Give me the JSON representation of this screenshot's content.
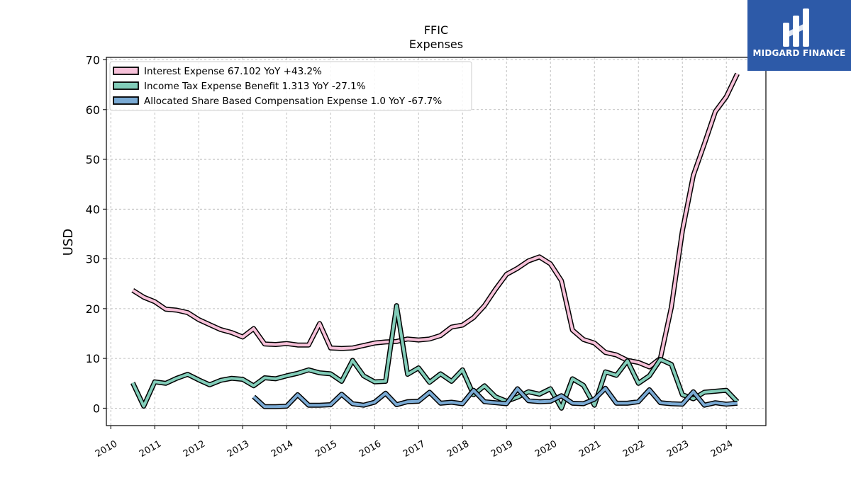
{
  "logo": {
    "text": "MIDGARD FINANCE",
    "icon": "midgard-logo-icon",
    "color": "#2d5aa8"
  },
  "chart_data": {
    "type": "line",
    "title": "FFIC",
    "subtitle": "Expenses",
    "xlabel": "",
    "ylabel": "USD",
    "xlim": [
      2009.9,
      2024.9
    ],
    "ylim": [
      -3.5,
      70.5
    ],
    "yticks": [
      0,
      10,
      20,
      30,
      40,
      50,
      60,
      70
    ],
    "xticks": [
      "2010",
      "2011",
      "2012",
      "2013",
      "2014",
      "2015",
      "2016",
      "2017",
      "2018",
      "2019",
      "2020",
      "2021",
      "2022",
      "2023",
      "2024"
    ],
    "grid": true,
    "legend_position": "top-left",
    "series": [
      {
        "name": "Interest Expense  67.102 YoY +43.2%",
        "color": "#f7c1d9",
        "x": [
          2010.5,
          2010.75,
          2011.0,
          2011.25,
          2011.5,
          2011.75,
          2012.0,
          2012.25,
          2012.5,
          2012.75,
          2013.0,
          2013.25,
          2013.5,
          2013.75,
          2014.0,
          2014.25,
          2014.5,
          2014.75,
          2015.0,
          2015.25,
          2015.5,
          2015.75,
          2016.0,
          2016.25,
          2016.5,
          2016.75,
          2017.0,
          2017.25,
          2017.5,
          2017.75,
          2018.0,
          2018.25,
          2018.5,
          2018.75,
          2019.0,
          2019.25,
          2019.5,
          2019.75,
          2020.0,
          2020.25,
          2020.5,
          2020.75,
          2021.0,
          2021.25,
          2021.5,
          2021.75,
          2022.0,
          2022.25,
          2022.5,
          2022.75,
          2023.0,
          2023.25,
          2023.5,
          2023.75,
          2024.0,
          2024.25
        ],
        "values": [
          23.7,
          22.3,
          21.4,
          19.9,
          19.7,
          19.2,
          17.8,
          16.8,
          15.8,
          15.2,
          14.3,
          16.0,
          12.9,
          12.8,
          13.0,
          12.7,
          12.7,
          17.0,
          12.1,
          12.0,
          12.1,
          12.6,
          13.1,
          13.3,
          13.4,
          13.9,
          13.7,
          13.9,
          14.6,
          16.3,
          16.7,
          18.2,
          20.6,
          23.9,
          26.9,
          28.1,
          29.6,
          30.4,
          29.0,
          25.6,
          15.7,
          13.8,
          13.1,
          11.2,
          10.7,
          9.6,
          9.2,
          8.3,
          10.0,
          20.3,
          35.6,
          46.8,
          53.1,
          59.6,
          62.6,
          67.2
        ]
      },
      {
        "name": "Income Tax Expense Benefit  1.313 YoY -27.1%",
        "color": "#82cdb9",
        "x": [
          2010.5,
          2010.75,
          2011.0,
          2011.25,
          2011.5,
          2011.75,
          2012.0,
          2012.25,
          2012.5,
          2012.75,
          2013.0,
          2013.25,
          2013.5,
          2013.75,
          2014.0,
          2014.25,
          2014.5,
          2014.75,
          2015.0,
          2015.25,
          2015.5,
          2015.75,
          2016.0,
          2016.25,
          2016.5,
          2016.75,
          2017.0,
          2017.25,
          2017.5,
          2017.75,
          2018.0,
          2018.25,
          2018.5,
          2018.75,
          2019.0,
          2019.25,
          2019.5,
          2019.75,
          2020.0,
          2020.25,
          2020.5,
          2020.75,
          2021.0,
          2021.25,
          2021.5,
          2021.75,
          2022.0,
          2022.25,
          2022.5,
          2022.75,
          2023.0,
          2023.25,
          2023.5,
          2023.75,
          2024.0,
          2024.25
        ],
        "values": [
          5.1,
          0.4,
          5.3,
          5.0,
          6.0,
          6.8,
          5.7,
          4.7,
          5.6,
          6.0,
          5.8,
          4.5,
          6.1,
          5.9,
          6.5,
          7.0,
          7.7,
          7.1,
          6.9,
          5.4,
          9.6,
          6.5,
          5.3,
          5.4,
          20.6,
          6.8,
          8.1,
          5.2,
          6.9,
          5.4,
          7.7,
          2.7,
          4.5,
          2.3,
          1.4,
          2.2,
          3.3,
          2.8,
          3.9,
          0.0,
          5.9,
          4.6,
          0.6,
          7.3,
          6.6,
          9.5,
          5.0,
          6.5,
          9.8,
          8.8,
          2.7,
          1.9,
          3.2,
          3.4,
          3.6,
          1.3
        ]
      },
      {
        "name": "Allocated Share Based Compensation Expense  1.0 YoY -67.7%",
        "color": "#7aaad4",
        "x": [
          2013.25,
          2013.5,
          2013.75,
          2014.0,
          2014.25,
          2014.5,
          2014.75,
          2015.0,
          2015.25,
          2015.5,
          2015.75,
          2016.0,
          2016.25,
          2016.5,
          2016.75,
          2017.0,
          2017.25,
          2017.5,
          2017.75,
          2018.0,
          2018.25,
          2018.5,
          2018.75,
          2019.0,
          2019.25,
          2019.5,
          2019.75,
          2020.0,
          2020.25,
          2020.5,
          2020.75,
          2021.0,
          2021.25,
          2021.5,
          2021.75,
          2022.0,
          2022.25,
          2022.5,
          2022.75,
          2023.0,
          2023.25,
          2023.5,
          2023.75,
          2024.0,
          2024.25
        ],
        "values": [
          2.3,
          0.3,
          0.3,
          0.4,
          2.7,
          0.6,
          0.6,
          0.7,
          2.8,
          0.9,
          0.6,
          1.2,
          3.0,
          0.7,
          1.3,
          1.4,
          3.2,
          1.0,
          1.2,
          0.9,
          3.6,
          1.3,
          1.1,
          0.9,
          3.9,
          1.5,
          1.3,
          1.4,
          2.5,
          1.0,
          0.9,
          1.8,
          4.0,
          1.0,
          1.0,
          1.3,
          3.7,
          1.1,
          0.9,
          0.8,
          3.3,
          0.6,
          1.1,
          0.8,
          1.0
        ]
      }
    ]
  }
}
